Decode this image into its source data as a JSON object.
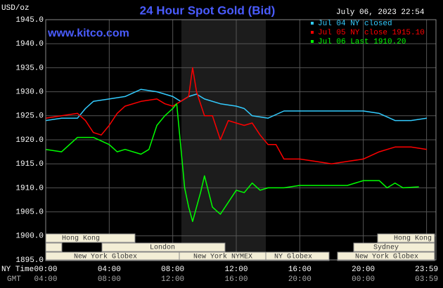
{
  "chart_data": {
    "type": "line",
    "title": "24 Hour Spot Gold (Bid)",
    "subtitle": "July 06, 2023 22:54",
    "y_label": "USD/oz",
    "annotation": "www.kitco.com",
    "x_label": "NY Time",
    "x2_label": "GMT",
    "xlim": [
      0,
      24
    ],
    "xticks": [
      {
        "value": 0,
        "label": "00:00"
      },
      {
        "value": 4,
        "label": "04:00"
      },
      {
        "value": 8,
        "label": "08:00"
      },
      {
        "value": 12,
        "label": "12:00"
      },
      {
        "value": 16,
        "label": "16:00"
      },
      {
        "value": 20,
        "label": "20:00"
      },
      {
        "value": 23.983,
        "label": "23:59"
      }
    ],
    "gmt_labels": [
      "04:00",
      "08:00",
      "12:00",
      "16:00",
      "20:00",
      "00:00",
      "03:59"
    ],
    "ylim": [
      1895,
      1945
    ],
    "yticks": [
      {
        "value": 1945,
        "label": "1945.0"
      },
      {
        "value": 1940,
        "label": "1940.0"
      },
      {
        "value": 1935,
        "label": "1935.0"
      },
      {
        "value": 1930,
        "label": "1930.0"
      },
      {
        "value": 1925,
        "label": "1925.0"
      },
      {
        "value": 1920,
        "label": "1920.0"
      },
      {
        "value": 1915,
        "label": "1915.0"
      },
      {
        "value": 1910,
        "label": "1910.0"
      },
      {
        "value": 1905,
        "label": "1905.0"
      },
      {
        "value": 1900,
        "label": "1900.0"
      },
      {
        "value": 1895,
        "label": "1895.0"
      }
    ],
    "grid": true,
    "sessions": [
      "Hong Kong",
      "London",
      "New York Globex",
      "New York NYMEX",
      "NY Globex",
      "Hong Kong",
      "Sydney",
      "New York Globex"
    ],
    "series": [
      {
        "name": "Jul 04 NY closed",
        "color": "#33ccff",
        "x": [
          0,
          1,
          2,
          2.5,
          3,
          4,
          5,
          6,
          7,
          8,
          8.5,
          9,
          9.5,
          10,
          11,
          12,
          12.5,
          13,
          14,
          15,
          16,
          17,
          18,
          19,
          20,
          21,
          22,
          23,
          24
        ],
        "values": [
          1924,
          1924.5,
          1924.5,
          1926.5,
          1928,
          1928.5,
          1929,
          1930.5,
          1930,
          1929,
          1928,
          1929,
          1929.5,
          1928.5,
          1927.5,
          1927,
          1926.5,
          1925,
          1924.5,
          1926,
          1926,
          1926,
          1926,
          1926,
          1926,
          1925.5,
          1924,
          1924,
          1924.5
        ]
      },
      {
        "name": "Jul 05 NY close 1915.10",
        "color": "#ff0000",
        "x": [
          0,
          1,
          2,
          2.5,
          3,
          3.5,
          4,
          4.5,
          5,
          6,
          7,
          7.5,
          8,
          8.5,
          9,
          9.25,
          9.5,
          10,
          10.5,
          11,
          11.5,
          12,
          12.5,
          13,
          13.5,
          14,
          14.5,
          15,
          16,
          17,
          18,
          19,
          20,
          21,
          22,
          23,
          24
        ],
        "values": [
          1924.5,
          1925,
          1925.5,
          1924,
          1921.5,
          1921,
          1923,
          1925.5,
          1927,
          1928,
          1928.5,
          1927.5,
          1927,
          1928,
          1929,
          1935,
          1930,
          1925,
          1925,
          1920,
          1924,
          1923.5,
          1923,
          1923.5,
          1921,
          1919,
          1919,
          1916,
          1916,
          1915.5,
          1915,
          1915.5,
          1916,
          1917.5,
          1918.5,
          1918.5,
          1918
        ]
      },
      {
        "name": "Jul 06 Last 1910.20",
        "color": "#00ff00",
        "x": [
          0,
          1,
          1.5,
          2,
          3,
          4,
          4.5,
          5,
          6,
          6.5,
          7,
          7.5,
          8,
          8.25,
          8.75,
          9,
          9.25,
          9.5,
          9.75,
          10,
          10.5,
          11,
          11.5,
          12,
          12.5,
          13,
          13.5,
          14,
          15,
          16,
          17,
          18,
          19,
          20,
          21,
          21.5,
          22,
          22.5,
          23.5
        ],
        "values": [
          1918,
          1917.5,
          1919,
          1920.5,
          1920.5,
          1919,
          1917.5,
          1918,
          1917,
          1918,
          1923,
          1925,
          1926.5,
          1927.5,
          1910,
          1906,
          1903,
          1906,
          1909,
          1912.5,
          1906,
          1904.5,
          1907,
          1909.5,
          1909,
          1911,
          1909.5,
          1910,
          1910,
          1910.5,
          1910.5,
          1910.5,
          1910.5,
          1911.5,
          1911.5,
          1910,
          1911,
          1910,
          1910.2
        ]
      }
    ]
  }
}
